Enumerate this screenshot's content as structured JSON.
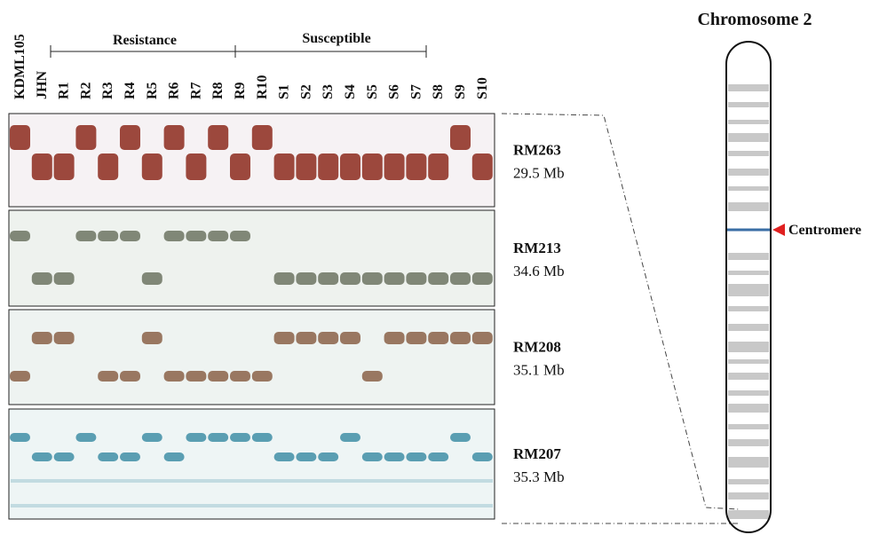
{
  "figure": {
    "lanes": [
      "KDML105",
      "JHN",
      "R1",
      "R2",
      "R3",
      "R4",
      "R5",
      "R6",
      "R7",
      "R8",
      "R9",
      "R10",
      "S1",
      "S2",
      "S3",
      "S4",
      "S5",
      "S6",
      "S7",
      "S8",
      "S9",
      "S10"
    ],
    "groups": [
      {
        "label": "Resistance"
      },
      {
        "label": "Susceptible"
      }
    ],
    "markers": [
      {
        "name": "RM263",
        "position": "29.5 Mb"
      },
      {
        "name": "RM213",
        "position": "34.6 Mb"
      },
      {
        "name": "RM208",
        "position": "35.1 Mb"
      },
      {
        "name": "RM207",
        "position": "35.3 Mb"
      }
    ],
    "chromosome": {
      "title": "Chromosome 2",
      "centromere": "Centromere"
    }
  }
}
